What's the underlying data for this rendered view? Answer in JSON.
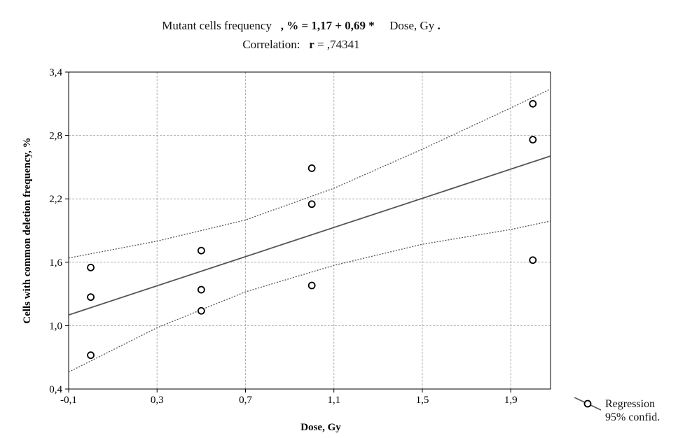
{
  "chart_data": {
    "type": "scatter",
    "title": {
      "equation_prefix": "Mutant cells frequency",
      "equation_bold": ", % = 1,17 + 0,69 *",
      "equation_suffix_text": "Dose, Gy",
      "equation_suffix_bold": ".",
      "correlation_label": "Correlation:",
      "correlation_r_label": "r",
      "correlation_value": "= ,74341"
    },
    "xlabel": "Dose, Gy",
    "ylabel": "Cells with common deletion frequency, %",
    "xlim": [
      -0.1,
      2.08
    ],
    "ylim": [
      0.4,
      3.4
    ],
    "x_ticks": [
      -0.1,
      0.3,
      0.7,
      1.1,
      1.5,
      1.9
    ],
    "x_tick_labels": [
      "-0,1",
      "0,3",
      "0,7",
      "1,1",
      "1,5",
      "1,9"
    ],
    "y_ticks": [
      0.4,
      1.0,
      1.6,
      2.2,
      2.8,
      3.4
    ],
    "y_tick_labels": [
      "0,4",
      "1,0",
      "1,6",
      "2,2",
      "2,8",
      "3,4"
    ],
    "grid": true,
    "points": [
      {
        "x": 0.0,
        "y": 0.72
      },
      {
        "x": 0.0,
        "y": 1.27
      },
      {
        "x": 0.0,
        "y": 1.55
      },
      {
        "x": 0.5,
        "y": 1.14
      },
      {
        "x": 0.5,
        "y": 1.34
      },
      {
        "x": 0.5,
        "y": 1.71
      },
      {
        "x": 1.0,
        "y": 1.38
      },
      {
        "x": 1.0,
        "y": 2.15
      },
      {
        "x": 1.0,
        "y": 2.49
      },
      {
        "x": 2.0,
        "y": 1.62
      },
      {
        "x": 2.0,
        "y": 2.76
      },
      {
        "x": 2.0,
        "y": 3.1
      }
    ],
    "regression": {
      "intercept": 1.17,
      "slope": 0.69
    },
    "confidence_band": {
      "upper": [
        [
          -0.1,
          1.64
        ],
        [
          0.3,
          1.8
        ],
        [
          0.7,
          2.0
        ],
        [
          1.1,
          2.3
        ],
        [
          1.5,
          2.67
        ],
        [
          1.9,
          3.06
        ],
        [
          2.08,
          3.24
        ]
      ],
      "lower": [
        [
          -0.1,
          0.56
        ],
        [
          0.3,
          0.98
        ],
        [
          0.7,
          1.32
        ],
        [
          1.1,
          1.57
        ],
        [
          1.5,
          1.77
        ],
        [
          1.9,
          1.91
        ],
        [
          2.08,
          1.99
        ]
      ]
    },
    "legend": {
      "position": "bottom-right",
      "entries": [
        "Regression",
        "95% confid."
      ]
    },
    "colors": {
      "line": "#555555",
      "grid": "#b0b0b0",
      "marker": "#000000"
    }
  }
}
